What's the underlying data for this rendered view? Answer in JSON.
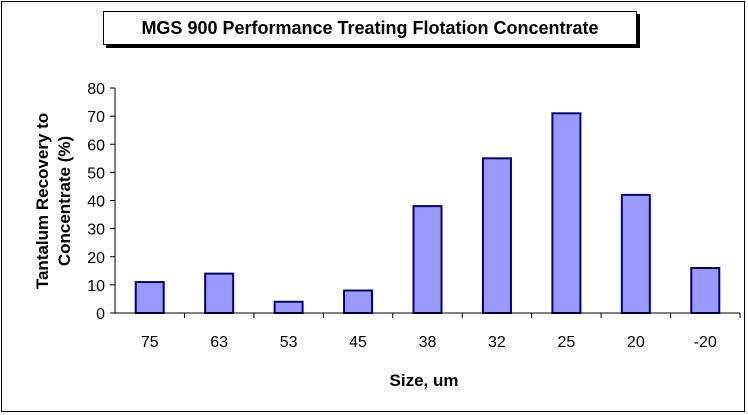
{
  "chart_data": {
    "type": "bar",
    "title": "MGS 900 Performance Treating Flotation Concentrate",
    "xlabel": "Size, um",
    "ylabel_lines": [
      "Tantalum Recovery to",
      "Concentrate (%)"
    ],
    "categories": [
      "75",
      "63",
      "53",
      "45",
      "38",
      "32",
      "25",
      "20",
      "-20"
    ],
    "values": [
      11,
      14,
      4,
      8,
      38,
      55,
      71,
      42,
      16
    ],
    "ylim": [
      0,
      80
    ],
    "yticks": [
      0,
      10,
      20,
      30,
      40,
      50,
      60,
      70,
      80
    ],
    "grid": false,
    "legend": "none",
    "colors": {
      "bar_fill": "#9999ff",
      "bar_stroke": "#000080"
    }
  }
}
